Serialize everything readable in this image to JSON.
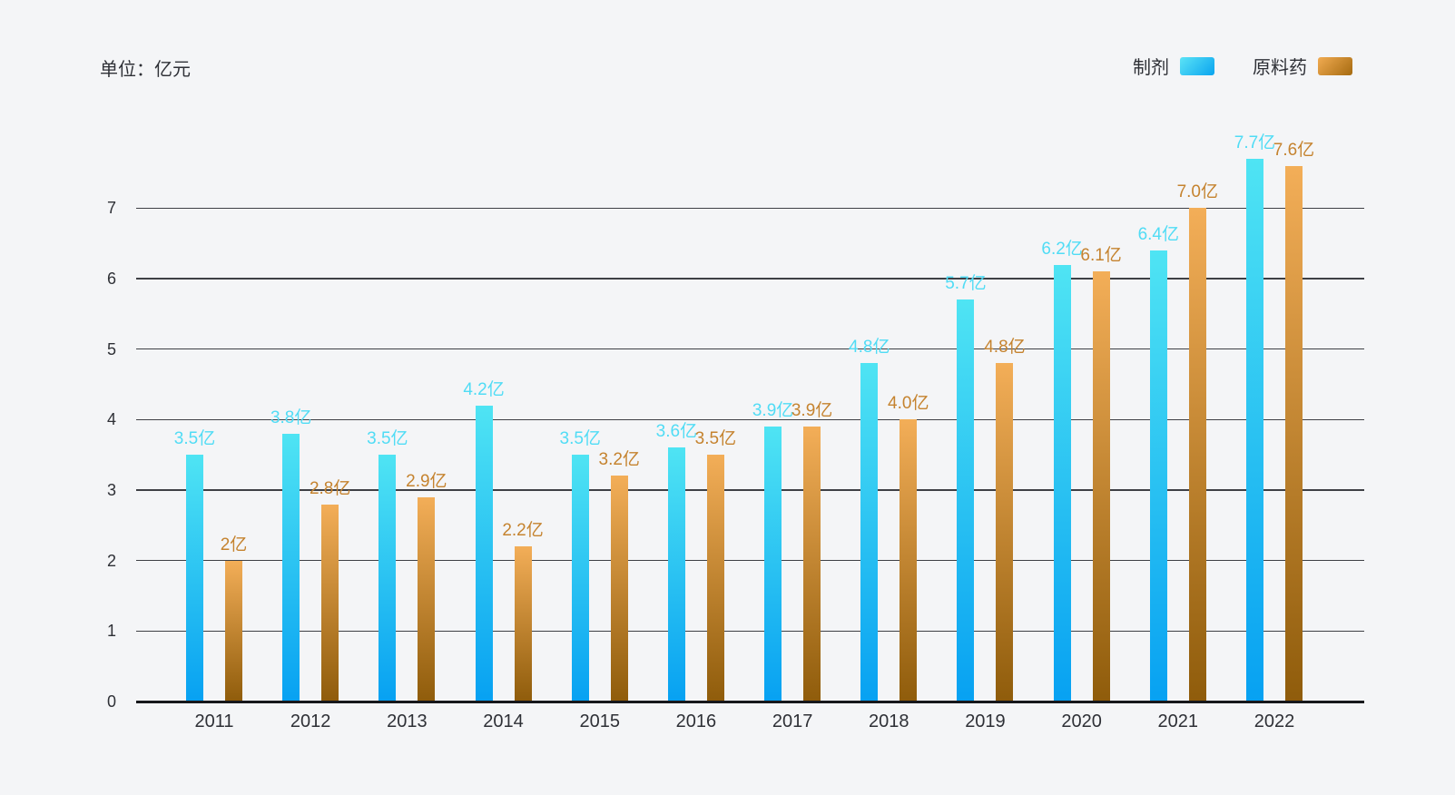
{
  "unit_label": "单位：亿元",
  "colors": {
    "background": "#F4F5F7",
    "text": "#2E3036",
    "gridline": "#3E4045",
    "axis": "#17181C"
  },
  "chart_data": {
    "type": "bar",
    "title": "",
    "xlabel": "",
    "ylabel": "",
    "unit": "亿元",
    "grid": true,
    "legend_position": "top-right",
    "ylim": [
      0,
      7.7
    ],
    "y_ticks": [
      0,
      1,
      2,
      3,
      4,
      5,
      6,
      7
    ],
    "categories": [
      "2011",
      "2012",
      "2013",
      "2014",
      "2015",
      "2016",
      "2017",
      "2018",
      "2019",
      "2020",
      "2021",
      "2022"
    ],
    "series": [
      {
        "name": "制剂",
        "values": [
          3.5,
          3.8,
          3.5,
          4.2,
          3.5,
          3.6,
          3.9,
          4.8,
          5.7,
          6.2,
          6.4,
          7.7
        ],
        "labels": [
          "3.5亿",
          "3.8亿",
          "3.5亿",
          "4.2亿",
          "3.5亿",
          "3.6亿",
          "3.9亿",
          "4.8亿",
          "5.7亿",
          "6.2亿",
          "6.4亿",
          "7.7亿"
        ],
        "color_top": "#4FE4F3",
        "color_bottom": "#07A1F2",
        "label_color": "#50DCF5"
      },
      {
        "name": "原料药",
        "values": [
          2,
          2.8,
          2.9,
          2.2,
          3.2,
          3.5,
          3.9,
          4.0,
          4.8,
          6.1,
          7.0,
          7.6
        ],
        "labels": [
          "2亿",
          "2.8亿",
          "2.9亿",
          "2.2亿",
          "3.2亿",
          "3.5亿",
          "3.9亿",
          "4.0亿",
          "4.8亿",
          "6.1亿",
          "7.0亿",
          "7.6亿"
        ],
        "color_top": "#F3AE58",
        "color_bottom": "#8F5C0B",
        "label_color": "#C5832F"
      }
    ]
  }
}
